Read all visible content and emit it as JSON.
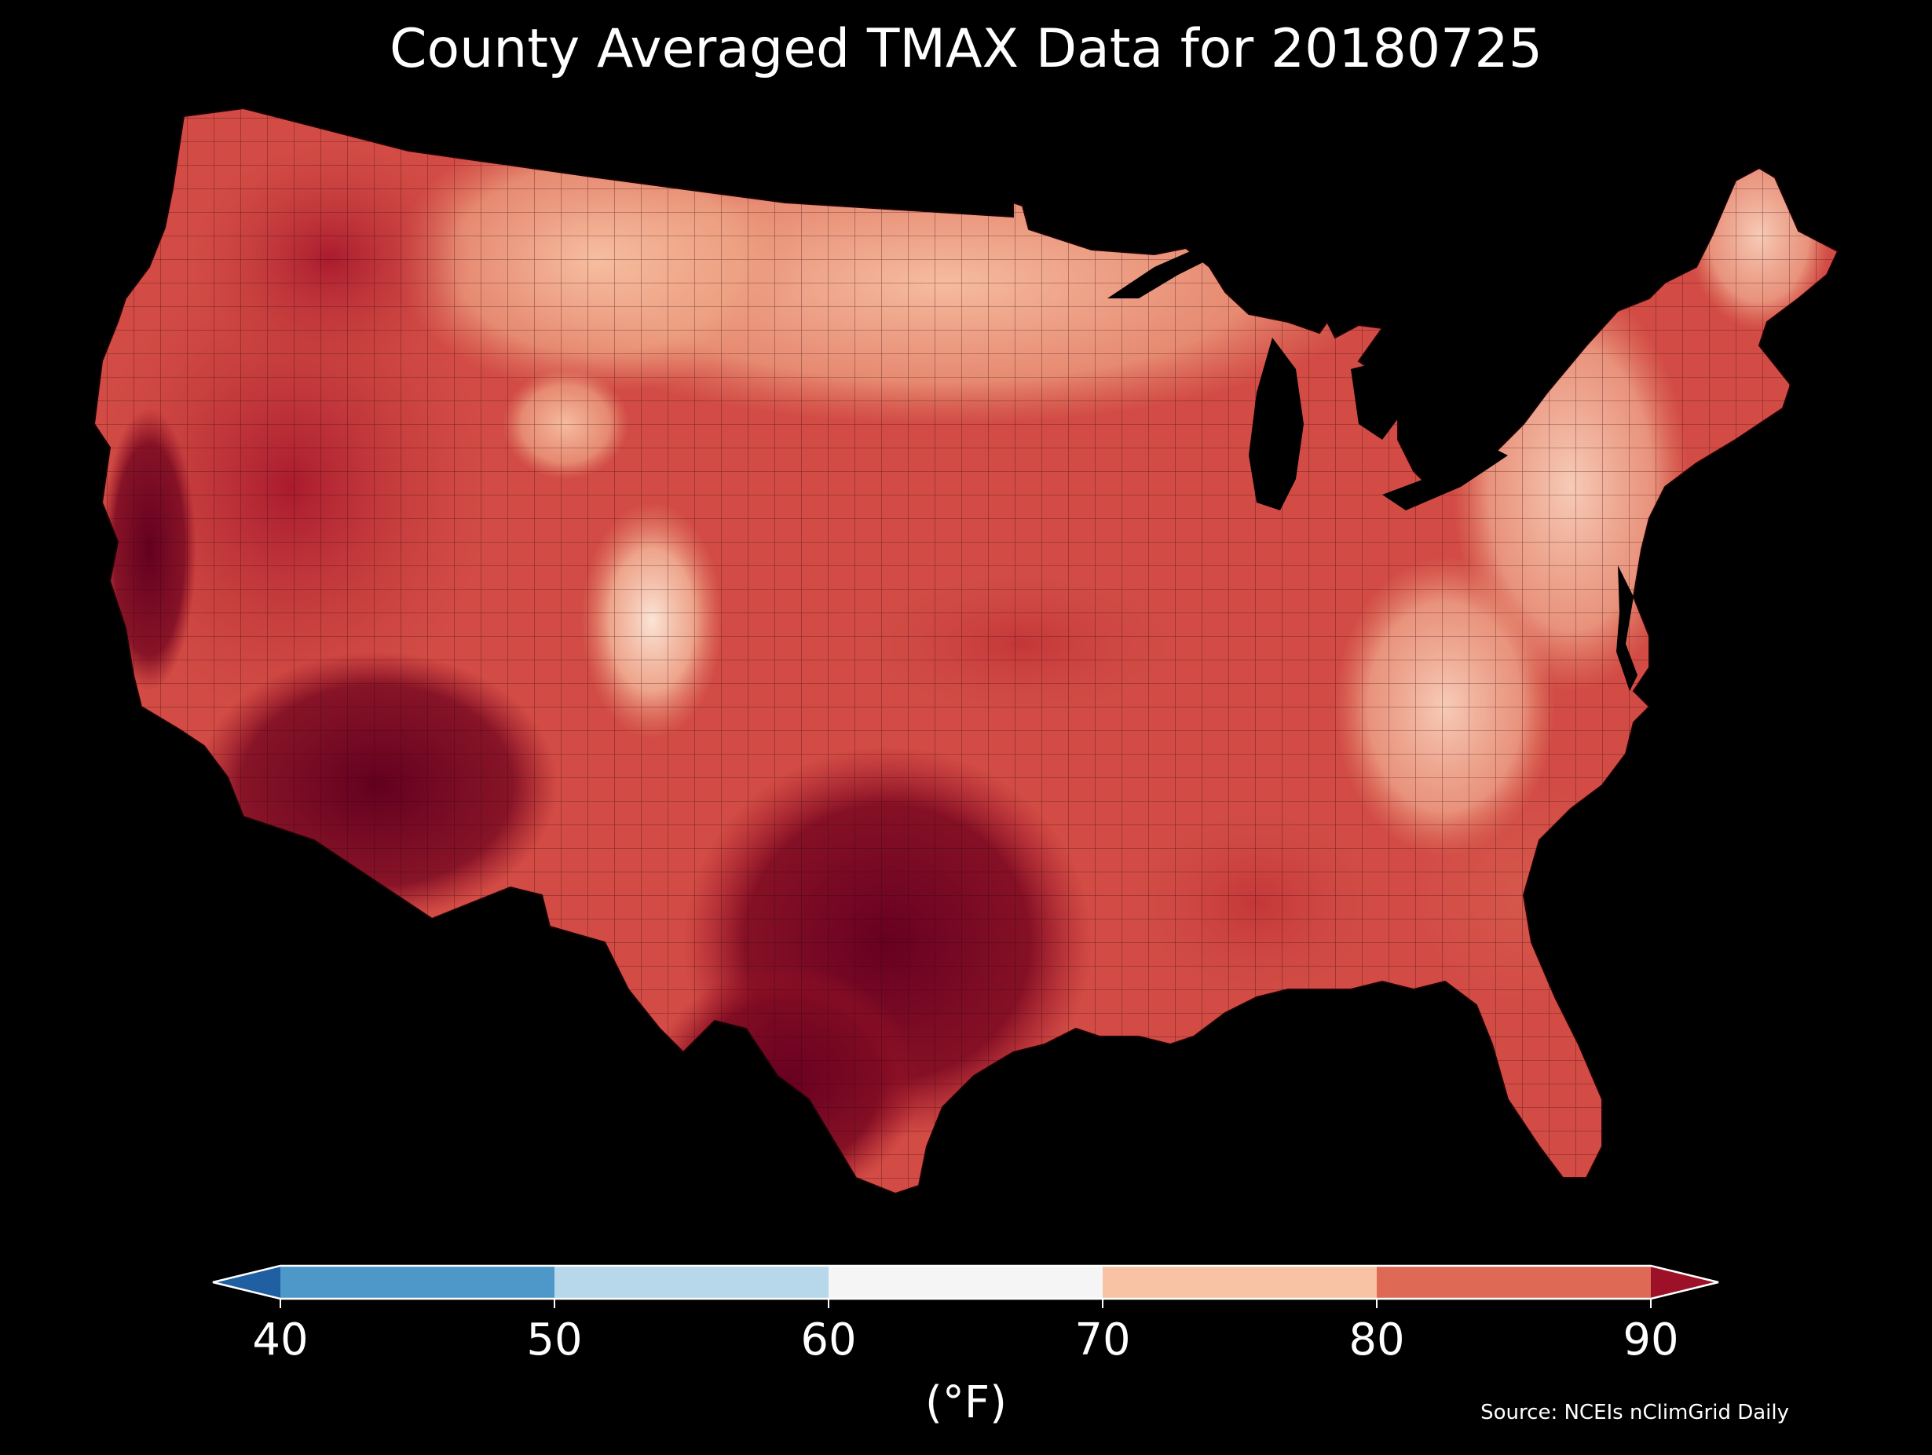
{
  "title": "County Averaged TMAX Data for 20180725",
  "colorbar": {
    "ticks": [
      "40",
      "50",
      "60",
      "70",
      "80",
      "90"
    ],
    "unit_label": "(°F)",
    "bins": [
      {
        "range": "<40",
        "color": "#1f5fa2"
      },
      {
        "range": "40-50",
        "color": "#4d98c8"
      },
      {
        "range": "50-60",
        "color": "#b7d8ea"
      },
      {
        "range": "60-70",
        "color": "#f5f5f5"
      },
      {
        "range": "70-80",
        "color": "#f8c2a4"
      },
      {
        "range": "80-90",
        "color": "#de6a56"
      },
      {
        "range": ">90",
        "color": "#9c1127"
      }
    ],
    "extend": "both"
  },
  "source": "Source: NCEIs nClimGrid Daily",
  "map": {
    "region": "Contiguous United States (county level)",
    "variable": "TMAX",
    "date": "20180725",
    "palette": {
      "near_70": "#f8c8b0",
      "mid_70s": "#eea083",
      "upper_70s": "#e0735f",
      "low_80s": "#cd4842",
      "upper_80s": "#b01d30",
      "above_90": "#86081f",
      "extreme": "#670022"
    },
    "background_color": "#000000"
  }
}
